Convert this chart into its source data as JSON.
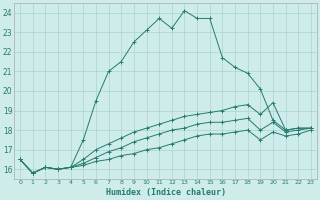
{
  "xlabel": "Humidex (Indice chaleur)",
  "background_color": "#ceecea",
  "grid_color": "#aad4d0",
  "line_color": "#267b6e",
  "xlim": [
    -0.5,
    23.5
  ],
  "ylim": [
    15.5,
    24.5
  ],
  "yticks": [
    16,
    17,
    18,
    19,
    20,
    21,
    22,
    23,
    24
  ],
  "xticks": [
    0,
    1,
    2,
    3,
    4,
    5,
    6,
    7,
    8,
    9,
    10,
    11,
    12,
    13,
    14,
    15,
    16,
    17,
    18,
    19,
    20,
    21,
    22,
    23
  ],
  "series": [
    [
      16.5,
      15.8,
      16.1,
      16.0,
      16.1,
      17.5,
      19.5,
      21.0,
      21.5,
      22.5,
      23.1,
      23.7,
      23.2,
      24.1,
      23.7,
      23.7,
      21.7,
      21.2,
      20.9,
      20.1,
      18.5,
      18.0,
      18.1,
      18.1
    ],
    [
      16.5,
      15.8,
      16.1,
      16.0,
      16.1,
      16.5,
      17.0,
      17.3,
      17.6,
      17.9,
      18.1,
      18.3,
      18.5,
      18.7,
      18.8,
      18.9,
      19.0,
      19.2,
      19.3,
      18.8,
      19.4,
      18.0,
      18.1,
      18.1
    ],
    [
      16.5,
      15.8,
      16.1,
      16.0,
      16.1,
      16.3,
      16.6,
      16.9,
      17.1,
      17.4,
      17.6,
      17.8,
      18.0,
      18.1,
      18.3,
      18.4,
      18.4,
      18.5,
      18.6,
      18.0,
      18.4,
      17.9,
      18.0,
      18.1
    ],
    [
      16.5,
      15.8,
      16.1,
      16.0,
      16.1,
      16.2,
      16.4,
      16.5,
      16.7,
      16.8,
      17.0,
      17.1,
      17.3,
      17.5,
      17.7,
      17.8,
      17.8,
      17.9,
      18.0,
      17.5,
      17.9,
      17.7,
      17.8,
      18.0
    ]
  ]
}
